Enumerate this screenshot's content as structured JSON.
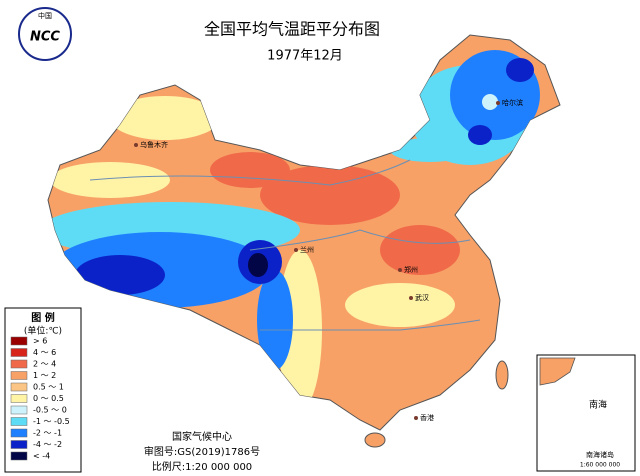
{
  "header": {
    "title": "全国平均气温距平分布图",
    "subtitle": "1977年12月"
  },
  "logo": {
    "top": "中国",
    "main": "NCC"
  },
  "legend": {
    "title": "图 例",
    "unit": "(单位:℃)",
    "items": [
      {
        "label": "> 6",
        "color": "#9b0000"
      },
      {
        "label": "4 ～ 6",
        "color": "#d8251c"
      },
      {
        "label": "2 ～ 4",
        "color": "#f06a4a"
      },
      {
        "label": "1 ～ 2",
        "color": "#f7a167"
      },
      {
        "label": "0.5 ～ 1",
        "color": "#fbc586"
      },
      {
        "label": "0 ～ 0.5",
        "color": "#fff3a6"
      },
      {
        "label": "-0.5 ～ 0",
        "color": "#cdf2fb"
      },
      {
        "label": "-1 ～ -0.5",
        "color": "#5fdcf5"
      },
      {
        "label": "-2 ～ -1",
        "color": "#1f80ff"
      },
      {
        "label": "-4 ～ -2",
        "color": "#0a22c8"
      },
      {
        "label": "< -4",
        "color": "#020546"
      }
    ]
  },
  "cities": [
    "乌鲁木齐",
    "哈尔滨",
    "兰州",
    "郑州",
    "武汉",
    "香港"
  ],
  "footer": {
    "org": "国家气候中心",
    "approval": "审图号:GS(2019)1786号",
    "scale": "比例尺:1:20 000 000"
  },
  "inset": {
    "title": "南海诸岛",
    "sea": "南海",
    "scale": "1:60 000 000"
  }
}
